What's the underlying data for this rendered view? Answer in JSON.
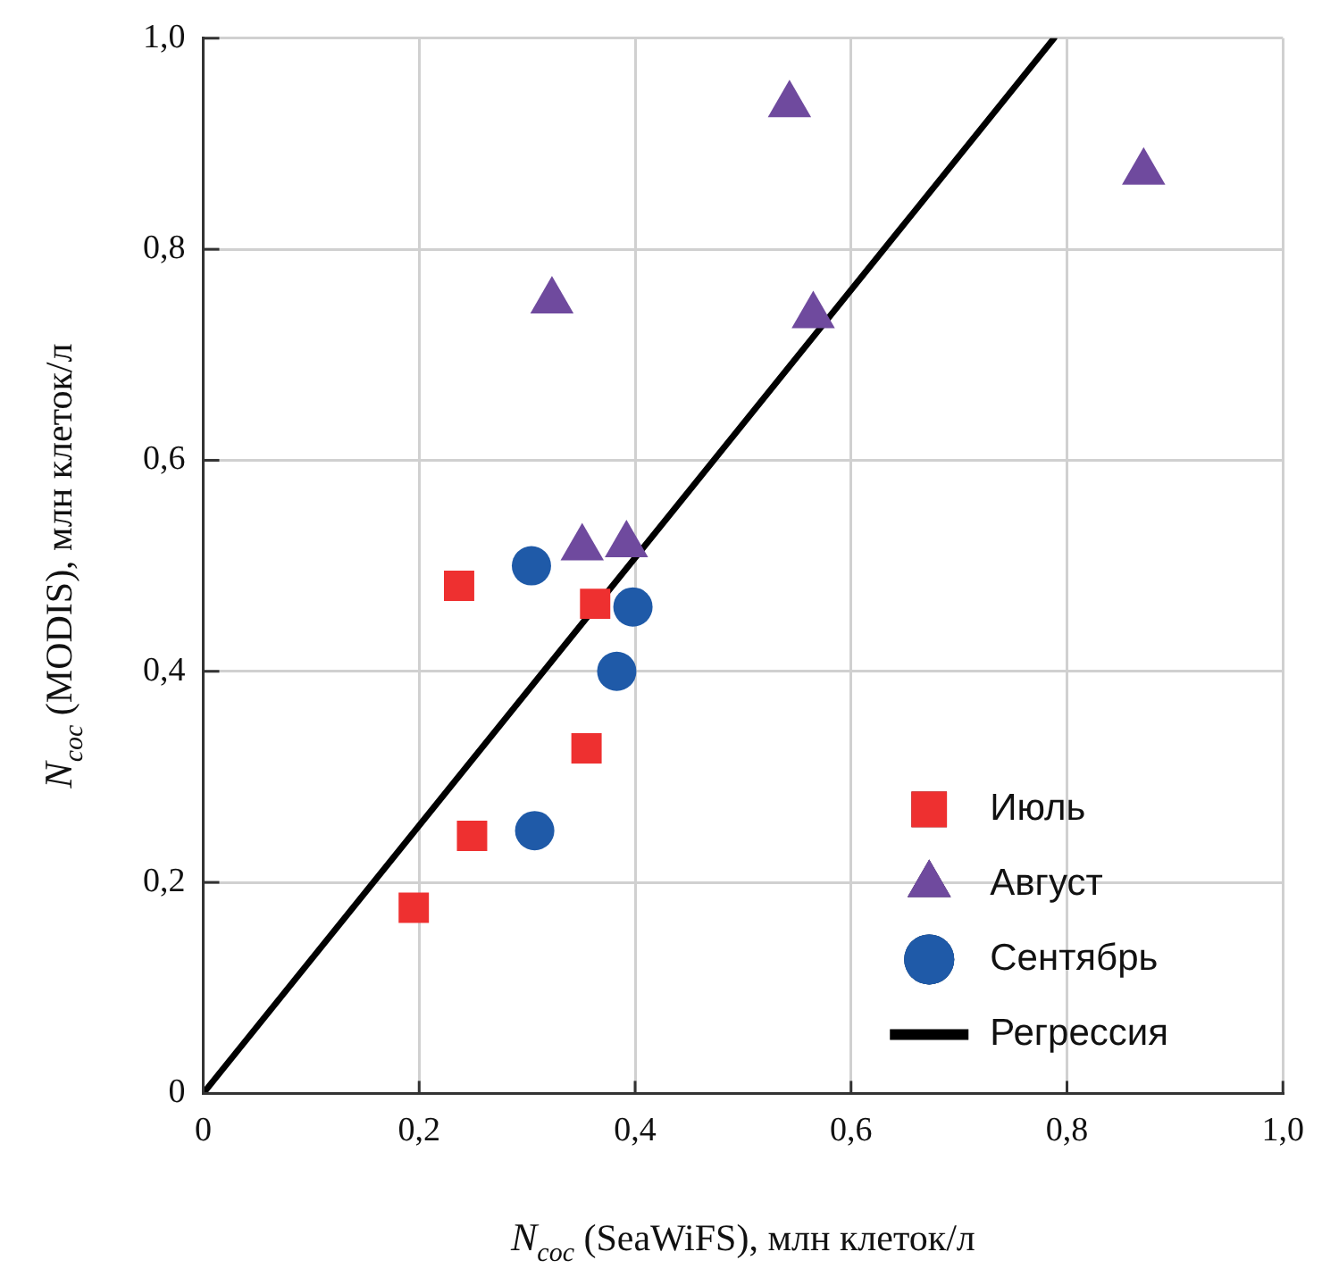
{
  "chart_data": {
    "type": "scatter",
    "xlabel": "N$_{coc}$ (SeaWiFS), млн клеток/л",
    "ylabel": "N$_{coc}$ (MODIS), млн клеток/л",
    "xlim": [
      0,
      1
    ],
    "ylim": [
      0,
      1
    ],
    "xticks": [
      0,
      {
        "value": 0.2,
        "label": "0,2"
      },
      {
        "value": 0.4,
        "label": "0,4"
      },
      {
        "value": 0.6,
        "label": "0,6"
      },
      {
        "value": 0.8,
        "label": "0,8"
      },
      {
        "value": 1,
        "label": "1,0"
      }
    ],
    "yticks": [
      0,
      {
        "value": 0.2,
        "label": "0,2"
      },
      {
        "value": 0.4,
        "label": "0,4"
      },
      {
        "value": 0.6,
        "label": "0,6"
      },
      {
        "value": 0.8,
        "label": "0,8"
      },
      {
        "value": 1,
        "label": "1,0"
      }
    ],
    "grid": true,
    "legend": "bottom right",
    "series": [
      {
        "name": "Июль",
        "color": "#ee3030",
        "marker": "square",
        "x": [
          0.237,
          0.363,
          0.355,
          0.249,
          0.195
        ],
        "values": [
          0.481,
          0.464,
          0.327,
          0.244,
          0.176
        ]
      },
      {
        "name": "Август",
        "color": "#6f4a9e",
        "marker": "triangle",
        "x": [
          0.351,
          0.392,
          0.543,
          0.871,
          0.323,
          0.565
        ],
        "values": [
          0.517,
          0.52,
          0.937,
          0.873,
          0.751,
          0.737
        ]
      },
      {
        "name": "Сентябрь",
        "color": "#1f5aa8",
        "marker": "circle",
        "x": [
          0.304,
          0.398,
          0.383,
          0.307
        ],
        "values": [
          0.5,
          0.461,
          0.4,
          0.249
        ]
      },
      {
        "name": "Регрессия",
        "type": "line",
        "color": "#000000",
        "marker": "none",
        "line_style": "solid",
        "x": [
          0,
          0.788
        ],
        "values": [
          0,
          1
        ]
      }
    ]
  }
}
